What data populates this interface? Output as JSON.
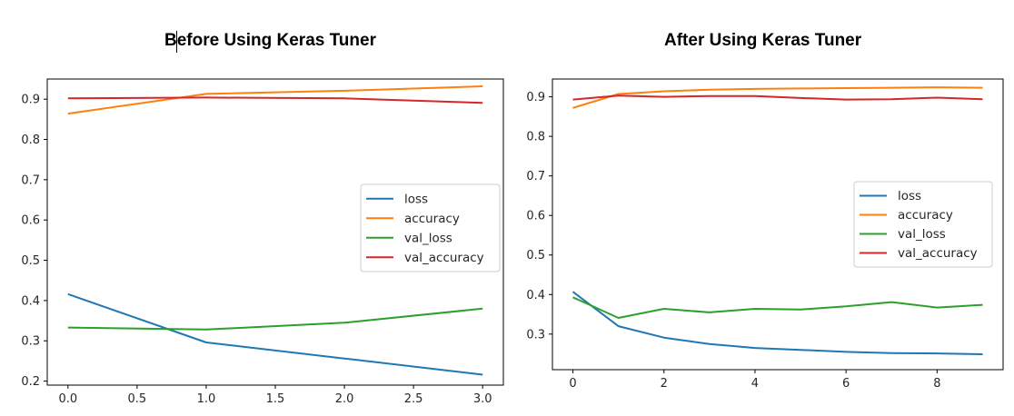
{
  "titles": {
    "left": "Before Using Keras Tuner",
    "right": "After Using Keras Tuner"
  },
  "colors": {
    "loss": "#1f77b4",
    "accuracy": "#ff7f0e",
    "val_loss": "#2ca02c",
    "val_accuracy": "#d62728"
  },
  "chart_data": [
    {
      "type": "line",
      "title": "Before Using Keras Tuner",
      "xlabel": "",
      "ylabel": "",
      "xlim": [
        -0.15,
        3.15
      ],
      "ylim": [
        0.19,
        0.95
      ],
      "xticks": [
        0.0,
        0.5,
        1.0,
        1.5,
        2.0,
        2.5,
        3.0
      ],
      "xtick_labels": [
        "0.0",
        "0.5",
        "1.0",
        "1.5",
        "2.0",
        "2.5",
        "3.0"
      ],
      "yticks": [
        0.2,
        0.3,
        0.4,
        0.5,
        0.6,
        0.7,
        0.8,
        0.9
      ],
      "ytick_labels": [
        "0.2",
        "0.3",
        "0.4",
        "0.5",
        "0.6",
        "0.7",
        "0.8",
        "0.9"
      ],
      "grid": false,
      "legend": "center-right",
      "x": [
        0,
        1,
        2,
        3
      ],
      "series": [
        {
          "name": "loss",
          "values": [
            0.416,
            0.296,
            0.256,
            0.216
          ]
        },
        {
          "name": "accuracy",
          "values": [
            0.864,
            0.913,
            0.921,
            0.932
          ]
        },
        {
          "name": "val_loss",
          "values": [
            0.333,
            0.328,
            0.345,
            0.38
          ]
        },
        {
          "name": "val_accuracy",
          "values": [
            0.902,
            0.904,
            0.902,
            0.891
          ]
        }
      ]
    },
    {
      "type": "line",
      "title": "After Using Keras Tuner",
      "xlabel": "",
      "ylabel": "",
      "xlim": [
        -0.45,
        9.45
      ],
      "ylim": [
        0.21,
        0.945
      ],
      "xticks": [
        0,
        2,
        4,
        6,
        8
      ],
      "xtick_labels": [
        "0",
        "2",
        "4",
        "6",
        "8"
      ],
      "yticks": [
        0.3,
        0.4,
        0.5,
        0.6,
        0.7,
        0.8,
        0.9
      ],
      "ytick_labels": [
        "0.3",
        "0.4",
        "0.5",
        "0.6",
        "0.7",
        "0.8",
        "0.9"
      ],
      "grid": false,
      "legend": "center-right",
      "x": [
        0,
        1,
        2,
        3,
        4,
        5,
        6,
        7,
        8,
        9
      ],
      "series": [
        {
          "name": "loss",
          "values": [
            0.407,
            0.32,
            0.291,
            0.275,
            0.265,
            0.26,
            0.255,
            0.252,
            0.251,
            0.249
          ]
        },
        {
          "name": "accuracy",
          "values": [
            0.872,
            0.907,
            0.914,
            0.918,
            0.92,
            0.921,
            0.922,
            0.923,
            0.924,
            0.923
          ]
        },
        {
          "name": "val_loss",
          "values": [
            0.393,
            0.341,
            0.364,
            0.355,
            0.364,
            0.362,
            0.37,
            0.381,
            0.367,
            0.374
          ]
        },
        {
          "name": "val_accuracy",
          "values": [
            0.893,
            0.903,
            0.9,
            0.902,
            0.902,
            0.897,
            0.893,
            0.894,
            0.898,
            0.894
          ]
        }
      ]
    }
  ]
}
